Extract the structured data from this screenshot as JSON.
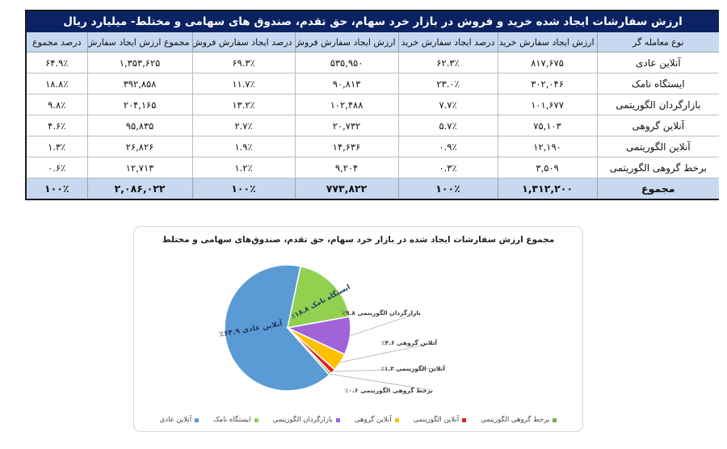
{
  "table": {
    "title": "ارزش سفارشات ایجاد شده خرید و فروش در بازار خرد سهام، حق تقدم، صندوق های سهامی و مختلط- میلیارد ریال",
    "headers": [
      "نوع معامله گر",
      "ارزش ایجاد سفارش خرید",
      "درصد ایجاد سفارش خرید",
      "ارزش ایجاد سفارش فروش",
      "درصد ایجاد سفارش فروش",
      "مجموع ارزش ایجاد سفارش",
      "درصد مجموع"
    ],
    "rows": [
      [
        "آنلاین عادی",
        "۸۱۷,۶۷۵",
        "۶۲.۳٪",
        "۵۳۵,۹۵۰",
        "۶۹.۳٪",
        "۱,۳۵۳,۶۲۵",
        "۶۴.۹٪"
      ],
      [
        "ایستگاه نامک",
        "۳۰۲,۰۴۶",
        "۲۳.۰٪",
        "۹۰,۸۱۳",
        "۱۱.۷٪",
        "۳۹۲,۸۵۸",
        "۱۸.۸٪"
      ],
      [
        "بازارگردان الگوریتمی",
        "۱۰۱,۶۷۷",
        "۷.۷٪",
        "۱۰۲,۴۸۸",
        "۱۳.۲٪",
        "۲۰۴,۱۶۵",
        "۹.۸٪"
      ],
      [
        "آنلاین گروهی",
        "۷۵,۱۰۳",
        "۵.۷٪",
        "۲۰,۷۳۲",
        "۲.۷٪",
        "۹۵,۸۳۵",
        "۴.۶٪"
      ],
      [
        "آنلاین الگوریتمی",
        "۱۲,۱۹۰",
        "۰.۹٪",
        "۱۴,۶۳۶",
        "۱.۹٪",
        "۲۶,۸۲۶",
        "۱.۳٪"
      ],
      [
        "برخط گروهی الگوریتمی",
        "۳,۵۰۹",
        "۰.۳٪",
        "۹,۲۰۴",
        "۱.۲٪",
        "۱۲,۷۱۳",
        "۰.۶٪"
      ]
    ],
    "total": [
      "مجموع",
      "۱,۳۱۲,۲۰۰",
      "۱۰۰٪",
      "۷۷۳,۸۲۲",
      "۱۰۰٪",
      "۲,۰۸۶,۰۲۲",
      "۱۰۰٪"
    ],
    "colors": {
      "title_bg": "#0b2363",
      "header_bg": "#c6d9f0",
      "total_bg": "#c6d9f0"
    }
  },
  "chart": {
    "title": "مجموع ارزش سفارشات ایجاد شده در بازار خرد سهام، حق تقدم، صندوق‌های سهامی و مختلط",
    "slice_labels": [
      "آنلاین عادی ۶۴.۹٪",
      "ایستگاه نامک ۱۸.۸٪",
      "بازارگردان الگوریتمی ۹.۸٪",
      "آنلاین گروهی ۴.۶٪",
      "آنلاین الگوریتمی ۱.۳٪",
      "برخط گروهی الگوریتمی ۰.۶٪"
    ],
    "legend": [
      {
        "label": "آنلاین عادی",
        "color": "#5b9bd5"
      },
      {
        "label": "ایستگاه نامک",
        "color": "#92d050"
      },
      {
        "label": "بازارگردان الگوریتمی",
        "color": "#a064d8"
      },
      {
        "label": "آنلاین گروهی",
        "color": "#ffc000"
      },
      {
        "label": "آنلاین الگوریتمی",
        "color": "#e0201c"
      },
      {
        "label": "برخط گروهی الگوریتمی",
        "color": "#70ad47"
      }
    ]
  },
  "chart_data": {
    "type": "pie",
    "title": "مجموع ارزش سفارشات ایجاد شده در بازار خرد سهام، حق تقدم، صندوق‌های سهامی و مختلط",
    "categories": [
      "آنلاین عادی",
      "ایستگاه نامک",
      "بازارگردان الگوریتمی",
      "آنلاین گروهی",
      "آنلاین الگوریتمی",
      "برخط گروهی الگوریتمی"
    ],
    "values": [
      64.9,
      18.8,
      9.8,
      4.6,
      1.3,
      0.6
    ],
    "absolute_values": [
      1353625,
      392858,
      204165,
      95835,
      26826,
      12713
    ],
    "unit": "%",
    "colors": [
      "#5b9bd5",
      "#92d050",
      "#a064d8",
      "#ffc000",
      "#e0201c",
      "#70ad47"
    ],
    "legend_position": "bottom"
  }
}
